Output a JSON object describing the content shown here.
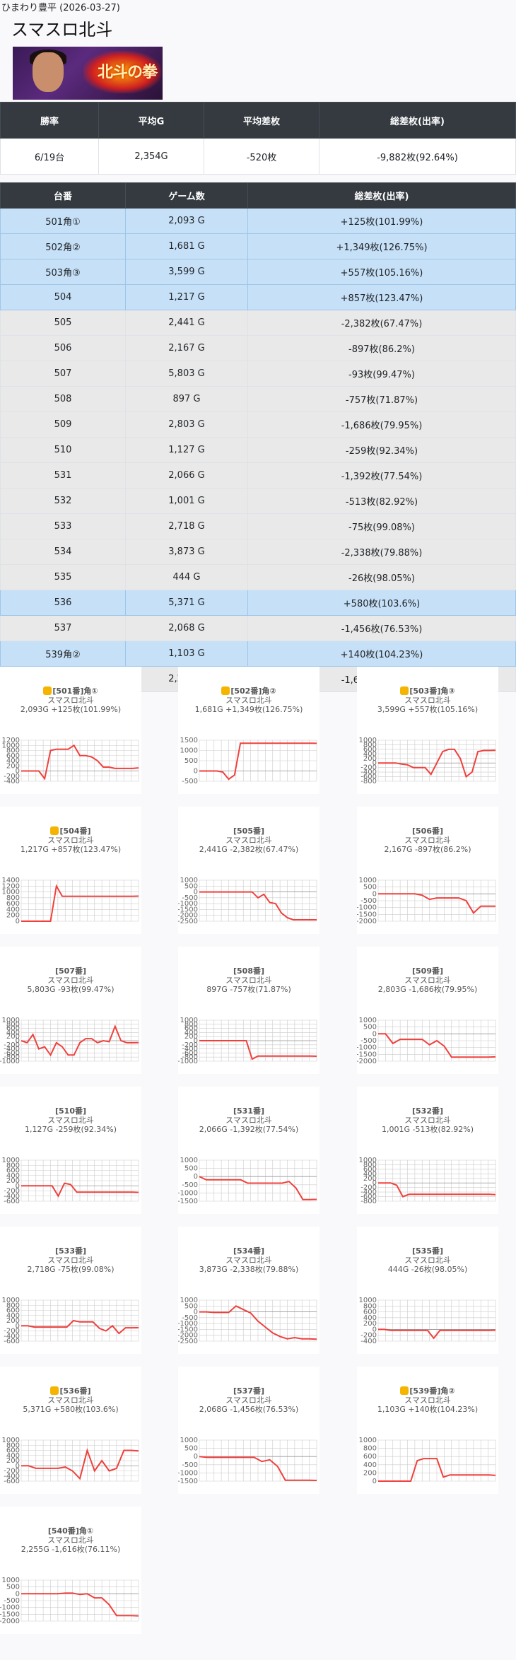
{
  "header": {
    "store_date": "ひまわり豊平 (2026-03-27)",
    "title": "スマスロ北斗",
    "banner_text": "北斗の拳"
  },
  "summary": {
    "headers": [
      "勝率",
      "平均G",
      "平均差枚",
      "総差枚(出率)"
    ],
    "values": [
      "6/19台",
      "2,354G",
      "-520枚",
      "-9,882枚(92.64%)"
    ]
  },
  "machines": {
    "headers": [
      "台番",
      "ゲーム数",
      "総差枚(出率)"
    ],
    "rows": [
      {
        "no": "501角①",
        "games": "2,093 G",
        "diff": "+125枚(101.99%)",
        "win": true
      },
      {
        "no": "502角②",
        "games": "1,681 G",
        "diff": "+1,349枚(126.75%)",
        "win": true
      },
      {
        "no": "503角③",
        "games": "3,599 G",
        "diff": "+557枚(105.16%)",
        "win": true
      },
      {
        "no": "504",
        "games": "1,217 G",
        "diff": "+857枚(123.47%)",
        "win": true
      },
      {
        "no": "505",
        "games": "2,441 G",
        "diff": "-2,382枚(67.47%)",
        "win": false
      },
      {
        "no": "506",
        "games": "2,167 G",
        "diff": "-897枚(86.2%)",
        "win": false
      },
      {
        "no": "507",
        "games": "5,803 G",
        "diff": "-93枚(99.47%)",
        "win": false
      },
      {
        "no": "508",
        "games": "897 G",
        "diff": "-757枚(71.87%)",
        "win": false
      },
      {
        "no": "509",
        "games": "2,803 G",
        "diff": "-1,686枚(79.95%)",
        "win": false
      },
      {
        "no": "510",
        "games": "1,127 G",
        "diff": "-259枚(92.34%)",
        "win": false
      },
      {
        "no": "531",
        "games": "2,066 G",
        "diff": "-1,392枚(77.54%)",
        "win": false
      },
      {
        "no": "532",
        "games": "1,001 G",
        "diff": "-513枚(82.92%)",
        "win": false
      },
      {
        "no": "533",
        "games": "2,718 G",
        "diff": "-75枚(99.08%)",
        "win": false
      },
      {
        "no": "534",
        "games": "3,873 G",
        "diff": "-2,338枚(79.88%)",
        "win": false
      },
      {
        "no": "535",
        "games": "444 G",
        "diff": "-26枚(98.05%)",
        "win": false
      },
      {
        "no": "536",
        "games": "5,371 G",
        "diff": "+580枚(103.6%)",
        "win": true
      },
      {
        "no": "537",
        "games": "2,068 G",
        "diff": "-1,456枚(76.53%)",
        "win": false
      },
      {
        "no": "539角②",
        "games": "1,103 G",
        "diff": "+140枚(104.23%)",
        "win": true
      },
      {
        "no": "540角①",
        "games": "2,255 G",
        "diff": "-1,616枚(76.11%)",
        "win": false
      }
    ]
  },
  "colors": {
    "line": "#f0403c",
    "grid": "#cccccc",
    "win_row": "#c6e0f7",
    "header_bg": "#343a40"
  },
  "chart_data": [
    {
      "type": "line",
      "label": "[501番]角①",
      "model": "スマスロ北斗",
      "stats": "2,093G +125枚(101.99%)",
      "thumb": true,
      "yticks": [
        "1200",
        "1000",
        "800",
        "600",
        "400",
        "200",
        "0",
        "-200",
        "-400"
      ],
      "ylim": [
        -400,
        1200
      ],
      "values": [
        0,
        0,
        0,
        0,
        -300,
        800,
        850,
        850,
        850,
        1000,
        600,
        600,
        550,
        400,
        150,
        150,
        100,
        100,
        100,
        100,
        120
      ]
    },
    {
      "type": "line",
      "label": "[502番]角②",
      "model": "スマスロ北斗",
      "stats": "1,681G +1,349枚(126.75%)",
      "thumb": true,
      "yticks": [
        "1500",
        "1000",
        "500",
        "0",
        "-500"
      ],
      "ylim": [
        -500,
        1500
      ],
      "values": [
        0,
        0,
        0,
        0,
        -50,
        -400,
        -200,
        1350,
        1350,
        1350,
        1350,
        1350,
        1350,
        1350,
        1350,
        1350,
        1350,
        1350,
        1350,
        1350,
        1349
      ]
    },
    {
      "type": "line",
      "label": "[503番]角③",
      "model": "スマスロ北斗",
      "stats": "3,599G +557枚(105.16%)",
      "thumb": true,
      "yticks": [
        "1000",
        "800",
        "600",
        "400",
        "200",
        "0",
        "-200",
        "-400",
        "-600",
        "-800"
      ],
      "ylim": [
        -800,
        1000
      ],
      "values": [
        0,
        0,
        0,
        0,
        -50,
        -80,
        -200,
        -200,
        -200,
        -500,
        0,
        500,
        600,
        600,
        200,
        -600,
        -400,
        500,
        550,
        550,
        557
      ]
    },
    {
      "type": "line",
      "label": "[504番]",
      "model": "スマスロ北斗",
      "stats": "1,217G +857枚(123.47%)",
      "thumb": true,
      "yticks": [
        "1400",
        "1200",
        "1000",
        "800",
        "600",
        "400",
        "200",
        "0"
      ],
      "ylim": [
        0,
        1400
      ],
      "values": [
        0,
        0,
        0,
        0,
        0,
        0,
        1200,
        850,
        850,
        850,
        850,
        850,
        850,
        850,
        850,
        850,
        850,
        850,
        850,
        850,
        857
      ]
    },
    {
      "type": "line",
      "label": "[505番]",
      "model": "スマスロ北斗",
      "stats": "2,441G -2,382枚(67.47%)",
      "thumb": false,
      "yticks": [
        "1000",
        "500",
        "0",
        "-500",
        "-1000",
        "-1500",
        "-2000",
        "-2500"
      ],
      "ylim": [
        -2500,
        1000
      ],
      "values": [
        0,
        0,
        0,
        0,
        0,
        0,
        0,
        0,
        0,
        0,
        -500,
        -200,
        -900,
        -1000,
        -1800,
        -2200,
        -2380,
        -2380,
        -2380,
        -2380,
        -2382
      ]
    },
    {
      "type": "line",
      "label": "[506番]",
      "model": "スマスロ北斗",
      "stats": "2,167G -897枚(86.2%)",
      "thumb": false,
      "yticks": [
        "1000",
        "500",
        "0",
        "-500",
        "-1000",
        "-1500",
        "-2000"
      ],
      "ylim": [
        -2000,
        1000
      ],
      "values": [
        0,
        0,
        0,
        0,
        0,
        0,
        -100,
        -400,
        -300,
        -300,
        -300,
        -300,
        -500,
        -1400,
        -900,
        -900,
        -897
      ]
    },
    {
      "type": "line",
      "label": "[507番]",
      "model": "スマスロ北斗",
      "stats": "5,803G -93枚(99.47%)",
      "thumb": false,
      "yticks": [
        "1000",
        "800",
        "600",
        "400",
        "200",
        "0",
        "-200",
        "-400",
        "-600",
        "-800",
        "-1000"
      ],
      "ylim": [
        -1000,
        1000
      ],
      "values": [
        0,
        -100,
        300,
        -400,
        -300,
        -700,
        -100,
        -300,
        -700,
        -700,
        -100,
        100,
        100,
        -100,
        0,
        -50,
        700,
        0,
        -100,
        -100,
        -93
      ]
    },
    {
      "type": "line",
      "label": "[508番]",
      "model": "スマスロ北斗",
      "stats": "897G -757枚(71.87%)",
      "thumb": false,
      "yticks": [
        "1000",
        "800",
        "600",
        "400",
        "200",
        "0",
        "-200",
        "-400",
        "-600",
        "-800",
        "-1000"
      ],
      "ylim": [
        -1000,
        1000
      ],
      "values": [
        0,
        0,
        0,
        0,
        0,
        0,
        0,
        0,
        0,
        -900,
        -750,
        -750,
        -750,
        -750,
        -750,
        -750,
        -750,
        -750,
        -750,
        -750,
        -757
      ]
    },
    {
      "type": "line",
      "label": "[509番]",
      "model": "スマスロ北斗",
      "stats": "2,803G -1,686枚(79.95%)",
      "thumb": false,
      "yticks": [
        "1000",
        "500",
        "0",
        "-500",
        "-1000",
        "-1500",
        "-2000"
      ],
      "ylim": [
        -2000,
        1000
      ],
      "values": [
        0,
        0,
        -700,
        -400,
        -400,
        -400,
        -400,
        -800,
        -500,
        -900,
        -1700,
        -1700,
        -1700,
        -1700,
        -1700,
        -1700,
        -1686
      ]
    },
    {
      "type": "line",
      "label": "[510番]",
      "model": "スマスロ北斗",
      "stats": "1,127G -259枚(92.34%)",
      "thumb": false,
      "yticks": [
        "1000",
        "800",
        "600",
        "400",
        "200",
        "0",
        "-200",
        "-400",
        "-600"
      ],
      "ylim": [
        -600,
        1000
      ],
      "values": [
        0,
        0,
        0,
        0,
        0,
        0,
        -400,
        100,
        50,
        -250,
        -250,
        -250,
        -250,
        -250,
        -250,
        -250,
        -250,
        -250,
        -250,
        -259
      ]
    },
    {
      "type": "line",
      "label": "[531番]",
      "model": "スマスロ北斗",
      "stats": "2,066G -1,392枚(77.54%)",
      "thumb": false,
      "yticks": [
        "1000",
        "500",
        "0",
        "-500",
        "-1000",
        "-1500"
      ],
      "ylim": [
        -1500,
        1000
      ],
      "values": [
        0,
        -200,
        -200,
        -200,
        -200,
        -200,
        -200,
        -400,
        -400,
        -400,
        -400,
        -400,
        -400,
        -300,
        -700,
        -1400,
        -1400,
        -1392
      ]
    },
    {
      "type": "line",
      "label": "[532番]",
      "model": "スマスロ北斗",
      "stats": "1,001G -513枚(82.92%)",
      "thumb": false,
      "yticks": [
        "1000",
        "800",
        "600",
        "400",
        "200",
        "0",
        "-200",
        "-400",
        "-600",
        "-800"
      ],
      "ylim": [
        -800,
        1000
      ],
      "values": [
        0,
        0,
        0,
        -100,
        -600,
        -500,
        -500,
        -500,
        -500,
        -500,
        -500,
        -500,
        -500,
        -500,
        -500,
        -500,
        -500,
        -500,
        -500,
        -513
      ]
    },
    {
      "type": "line",
      "label": "[533番]",
      "model": "スマスロ北斗",
      "stats": "2,718G -75枚(99.08%)",
      "thumb": false,
      "yticks": [
        "1000",
        "800",
        "600",
        "400",
        "200",
        "0",
        "-200",
        "-400",
        "-600"
      ],
      "ylim": [
        -600,
        1000
      ],
      "values": [
        0,
        0,
        -50,
        -50,
        -50,
        -50,
        -50,
        -50,
        200,
        150,
        150,
        150,
        -100,
        -200,
        0,
        -300,
        -80,
        -80,
        -75
      ]
    },
    {
      "type": "line",
      "label": "[534番]",
      "model": "スマスロ北斗",
      "stats": "3,873G -2,338枚(79.88%)",
      "thumb": false,
      "yticks": [
        "1000",
        "500",
        "0",
        "-500",
        "-1000",
        "-1500",
        "-2000",
        "-2500"
      ],
      "ylim": [
        -2500,
        1000
      ],
      "values": [
        0,
        0,
        -50,
        -50,
        -50,
        500,
        200,
        -100,
        -800,
        -1300,
        -1800,
        -2100,
        -2300,
        -2200,
        -2300,
        -2300,
        -2338
      ]
    },
    {
      "type": "line",
      "label": "[535番]",
      "model": "スマスロ北斗",
      "stats": "444G -26枚(98.05%)",
      "thumb": false,
      "yticks": [
        "1000",
        "800",
        "600",
        "400",
        "200",
        "0",
        "-200",
        "-400"
      ],
      "ylim": [
        -400,
        1000
      ],
      "values": [
        0,
        0,
        -30,
        -30,
        -30,
        -30,
        -30,
        -30,
        -30,
        -300,
        -30,
        -30,
        -30,
        -30,
        -30,
        -30,
        -30,
        -30,
        -30,
        -26
      ]
    },
    {
      "type": "line",
      "label": "[536番]",
      "model": "スマスロ北斗",
      "stats": "5,371G +580枚(103.6%)",
      "thumb": true,
      "yticks": [
        "1000",
        "800",
        "600",
        "400",
        "200",
        "0",
        "-200",
        "-400",
        "-600"
      ],
      "ylim": [
        -600,
        1000
      ],
      "values": [
        0,
        0,
        -100,
        -100,
        -100,
        -100,
        -50,
        -200,
        -500,
        600,
        -200,
        200,
        -200,
        -100,
        600,
        600,
        580
      ]
    },
    {
      "type": "line",
      "label": "[537番]",
      "model": "スマスロ北斗",
      "stats": "2,068G -1,456枚(76.53%)",
      "thumb": false,
      "yticks": [
        "1000",
        "500",
        "0",
        "-500",
        "-1000",
        "-1500"
      ],
      "ylim": [
        -1500,
        1000
      ],
      "values": [
        0,
        -50,
        -50,
        -50,
        -50,
        -50,
        -50,
        -50,
        -300,
        -200,
        -600,
        -1450,
        -1450,
        -1450,
        -1450,
        -1456
      ]
    },
    {
      "type": "line",
      "label": "[539番]角②",
      "model": "スマスロ北斗",
      "stats": "1,103G +140枚(104.23%)",
      "thumb": true,
      "yticks": [
        "1000",
        "800",
        "600",
        "400",
        "200",
        "0"
      ],
      "ylim": [
        0,
        1000
      ],
      "values": [
        0,
        0,
        0,
        0,
        0,
        0,
        500,
        550,
        550,
        550,
        100,
        150,
        150,
        150,
        150,
        150,
        150,
        150,
        140
      ]
    },
    {
      "type": "line",
      "label": "[540番]角①",
      "model": "スマスロ北斗",
      "stats": "2,255G -1,616枚(76.11%)",
      "thumb": false,
      "yticks": [
        "1000",
        "500",
        "0",
        "-500",
        "-1000",
        "-1500",
        "-2000"
      ],
      "ylim": [
        -2000,
        1000
      ],
      "values": [
        0,
        0,
        0,
        0,
        0,
        0,
        50,
        50,
        -50,
        0,
        -300,
        -300,
        -800,
        -1600,
        -1600,
        -1600,
        -1616
      ]
    }
  ]
}
